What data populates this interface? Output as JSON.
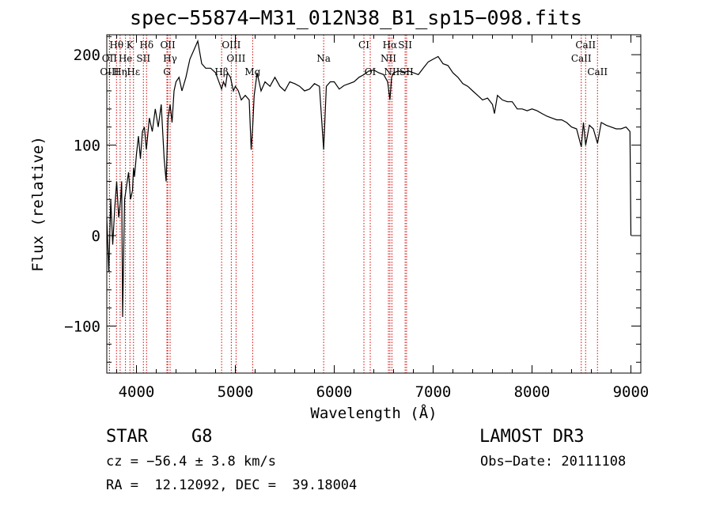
{
  "chart_data": {
    "type": "line",
    "title": "spec−55874−M31_012N38_B1_sp15−098.fits",
    "xlabel": "Wavelength (Å)",
    "ylabel": "Flux (relative)",
    "xlim": [
      3700,
      9100
    ],
    "ylim": [
      -152,
      222
    ],
    "xticks": [
      4000,
      5000,
      6000,
      7000,
      8000,
      9000
    ],
    "xtick_labels": [
      "4000",
      "5000",
      "6000",
      "7000",
      "8000",
      "9000"
    ],
    "yticks": [
      -100,
      0,
      100,
      200
    ],
    "ytick_labels": [
      "−100",
      "0",
      "100",
      "200"
    ],
    "grid": false,
    "series": [
      {
        "name": "flux",
        "x": [
          3700,
          3720,
          3740,
          3760,
          3780,
          3800,
          3820,
          3840,
          3850,
          3860,
          3880,
          3900,
          3920,
          3940,
          3960,
          3970,
          3980,
          4000,
          4020,
          4040,
          4060,
          4080,
          4100,
          4130,
          4160,
          4190,
          4220,
          4250,
          4280,
          4300,
          4320,
          4340,
          4360,
          4380,
          4400,
          4430,
          4460,
          4500,
          4540,
          4580,
          4620,
          4660,
          4700,
          4750,
          4800,
          4850,
          4861,
          4880,
          4900,
          4920,
          4950,
          4980,
          5000,
          5030,
          5060,
          5100,
          5140,
          5160,
          5175,
          5190,
          5220,
          5260,
          5300,
          5350,
          5400,
          5450,
          5500,
          5550,
          5600,
          5650,
          5700,
          5750,
          5800,
          5850,
          5893,
          5920,
          5960,
          6000,
          6050,
          6100,
          6150,
          6200,
          6250,
          6300,
          6350,
          6400,
          6450,
          6500,
          6540,
          6563,
          6580,
          6600,
          6650,
          6700,
          6750,
          6800,
          6850,
          6900,
          6950,
          7000,
          7050,
          7100,
          7150,
          7200,
          7250,
          7300,
          7350,
          7400,
          7450,
          7500,
          7550,
          7600,
          7620,
          7650,
          7700,
          7750,
          7800,
          7850,
          7900,
          7950,
          8000,
          8050,
          8100,
          8150,
          8200,
          8250,
          8300,
          8350,
          8400,
          8450,
          8498,
          8520,
          8542,
          8580,
          8620,
          8662,
          8700,
          8750,
          8800,
          8850,
          8900,
          8950,
          8990,
          9000
        ],
        "values": [
          20,
          -40,
          40,
          -10,
          30,
          60,
          20,
          40,
          60,
          -90,
          40,
          55,
          70,
          40,
          50,
          75,
          65,
          90,
          110,
          85,
          115,
          120,
          95,
          130,
          115,
          140,
          120,
          145,
          85,
          60,
          130,
          145,
          125,
          160,
          170,
          175,
          160,
          175,
          195,
          205,
          215,
          190,
          185,
          185,
          180,
          165,
          162,
          170,
          165,
          180,
          175,
          160,
          165,
          160,
          150,
          155,
          150,
          95,
          120,
          155,
          180,
          160,
          170,
          165,
          175,
          165,
          160,
          170,
          168,
          165,
          160,
          162,
          168,
          165,
          95,
          165,
          170,
          170,
          162,
          166,
          168,
          170,
          175,
          178,
          182,
          183,
          180,
          178,
          170,
          150,
          175,
          180,
          182,
          180,
          182,
          180,
          178,
          185,
          192,
          195,
          198,
          190,
          188,
          180,
          175,
          168,
          165,
          160,
          155,
          150,
          152,
          145,
          135,
          155,
          150,
          148,
          148,
          140,
          140,
          138,
          140,
          138,
          135,
          132,
          130,
          128,
          128,
          125,
          120,
          118,
          98,
          125,
          100,
          122,
          118,
          102,
          125,
          122,
          120,
          118,
          118,
          120,
          115,
          0
        ]
      }
    ],
    "lines": [
      {
        "label": "Hθ",
        "x": 3798,
        "row": 1
      },
      {
        "label": "OII",
        "x": 3727,
        "row": 2
      },
      {
        "label": "OIII",
        "x": 3727,
        "row": 3
      },
      {
        "label": "Hη",
        "x": 3835,
        "row": 3
      },
      {
        "label": "K",
        "x": 3934,
        "row": 1
      },
      {
        "label": "He",
        "x": 3889,
        "row": 2
      },
      {
        "label": "Hε",
        "x": 3970,
        "row": 3
      },
      {
        "label": "SII",
        "x": 4070,
        "row": 2
      },
      {
        "label": "Hδ",
        "x": 4102,
        "row": 1
      },
      {
        "label": "OII",
        "x": 4317,
        "row": 1
      },
      {
        "label": "Hγ",
        "x": 4340,
        "row": 2
      },
      {
        "label": "G",
        "x": 4308,
        "row": 3
      },
      {
        "label": "OIII",
        "x": 4959,
        "row": 1
      },
      {
        "label": "OIII",
        "x": 5007,
        "row": 2
      },
      {
        "label": "Hβ",
        "x": 4861,
        "row": 3
      },
      {
        "label": "Mg",
        "x": 5175,
        "row": 3
      },
      {
        "label": "Na",
        "x": 5893,
        "row": 2
      },
      {
        "label": "CI",
        "x": 6300,
        "row": 1
      },
      {
        "label": "OI",
        "x": 6364,
        "row": 3
      },
      {
        "label": "Hα",
        "x": 6563,
        "row": 1
      },
      {
        "label": "NII",
        "x": 6548,
        "row": 2
      },
      {
        "label": "NII",
        "x": 6583,
        "row": 3
      },
      {
        "label": "SII",
        "x": 6717,
        "row": 1
      },
      {
        "label": "SII",
        "x": 6731,
        "row": 3
      },
      {
        "label": "CaII",
        "x": 8542,
        "row": 1
      },
      {
        "label": "CaII",
        "x": 8498,
        "row": 2
      },
      {
        "label": "CaII",
        "x": 8662,
        "row": 3
      }
    ]
  },
  "info": {
    "class": "STAR",
    "subclass": "G8",
    "survey": "LAMOST DR3",
    "cz": "cz = −56.4 ± 3.8 km/s",
    "obs_date": "Obs−Date: 20111108",
    "radec": "RA =  12.12092, DEC =  39.18004"
  }
}
